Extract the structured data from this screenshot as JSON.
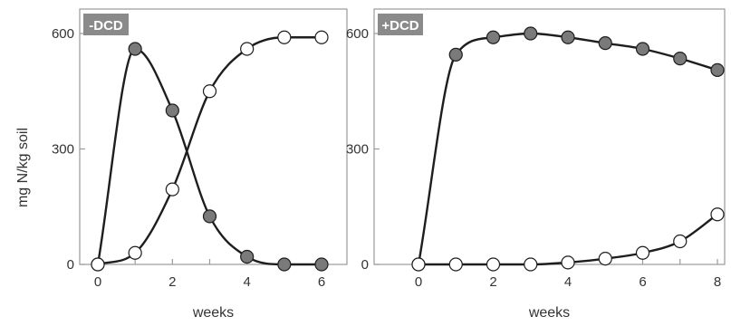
{
  "shared": {
    "ylabel": "mg N/kg soil",
    "colors": {
      "frame": "#9a9a9a",
      "badge_bg": "#8a8a8a",
      "badge_text": "#ffffff",
      "curve": "#1e1e1e",
      "filled_marker": "#7a7a7a",
      "open_marker": "#ffffff",
      "text": "#333333"
    }
  },
  "chart_data": [
    {
      "type": "line",
      "badge": "-DCD",
      "xlabel": "weeks",
      "xlim": [
        0,
        6
      ],
      "ylim": [
        0,
        600
      ],
      "xticks": [
        0,
        1,
        2,
        3,
        4,
        5,
        6
      ],
      "xtick_labels": [
        "0",
        "",
        "2",
        "",
        "4",
        "",
        "6"
      ],
      "yticks": [
        0,
        300,
        600
      ],
      "ytick_labels": [
        "0",
        "300",
        "600"
      ],
      "series": [
        {
          "marker": "filled",
          "x": [
            0,
            1,
            2,
            3,
            4,
            5,
            6
          ],
          "y": [
            0,
            560,
            400,
            125,
            20,
            0,
            0
          ]
        },
        {
          "marker": "open",
          "x": [
            0,
            1,
            2,
            3,
            4,
            5,
            6
          ],
          "y": [
            0,
            30,
            195,
            450,
            560,
            590,
            590
          ]
        }
      ]
    },
    {
      "type": "line",
      "badge": "+DCD",
      "xlabel": "weeks",
      "xlim": [
        0,
        8
      ],
      "ylim": [
        0,
        600
      ],
      "xticks": [
        0,
        1,
        2,
        3,
        4,
        5,
        6,
        7,
        8
      ],
      "xtick_labels": [
        "0",
        "",
        "2",
        "",
        "4",
        "",
        "6",
        "",
        "8"
      ],
      "yticks": [
        0,
        300,
        600
      ],
      "ytick_labels": [
        "0",
        "300",
        "600"
      ],
      "series": [
        {
          "marker": "filled",
          "x": [
            0,
            1,
            2,
            3,
            4,
            5,
            6,
            7,
            8
          ],
          "y": [
            0,
            545,
            590,
            600,
            590,
            575,
            560,
            535,
            505
          ]
        },
        {
          "marker": "open",
          "x": [
            0,
            1,
            2,
            3,
            4,
            5,
            6,
            7,
            8
          ],
          "y": [
            0,
            0,
            0,
            0,
            5,
            15,
            30,
            60,
            130
          ]
        }
      ]
    }
  ]
}
